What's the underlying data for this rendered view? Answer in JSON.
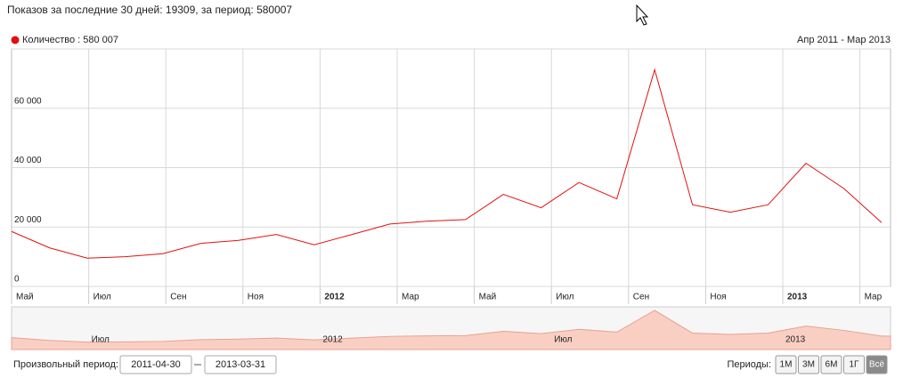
{
  "header": {
    "title": "Показов за последние 30 дней: 19309, за период: 580007"
  },
  "chart_data": {
    "type": "line",
    "legend": "Количество : 580 007",
    "range_label": "Апр 2011 - Мар 2013",
    "series": [
      {
        "name": "Количество",
        "color": "#e31010",
        "values": [
          18500,
          13000,
          9500,
          10000,
          11000,
          14500,
          15500,
          17500,
          14000,
          17500,
          21000,
          22000,
          22500,
          31000,
          26500,
          35000,
          29500,
          73000,
          27500,
          25000,
          27500,
          41500,
          33000,
          21500
        ]
      }
    ],
    "ylim": [
      0,
      80000
    ],
    "yticks": [
      0,
      {
        "value": 20000,
        "label": "20 000"
      },
      {
        "value": 40000,
        "label": "40 000"
      },
      {
        "value": 60000,
        "label": "60 000"
      }
    ],
    "x_tick_labels": [
      "Май",
      "Июл",
      "Сен",
      "Ноя",
      "2012",
      "Мар",
      "Май",
      "Июл",
      "Сен",
      "Ноя",
      "2013",
      "Мар"
    ],
    "navigator_labels": [
      "Июл",
      "2012",
      "Июл",
      "2013"
    ],
    "grid": true
  },
  "controls": {
    "custom_period_label": "Произвольный период:",
    "date_from": "2011-04-30",
    "date_to": "2013-03-31",
    "periods_label": "Периоды:",
    "period_buttons": [
      "1М",
      "3М",
      "6М",
      "1Г",
      "Всё"
    ]
  }
}
